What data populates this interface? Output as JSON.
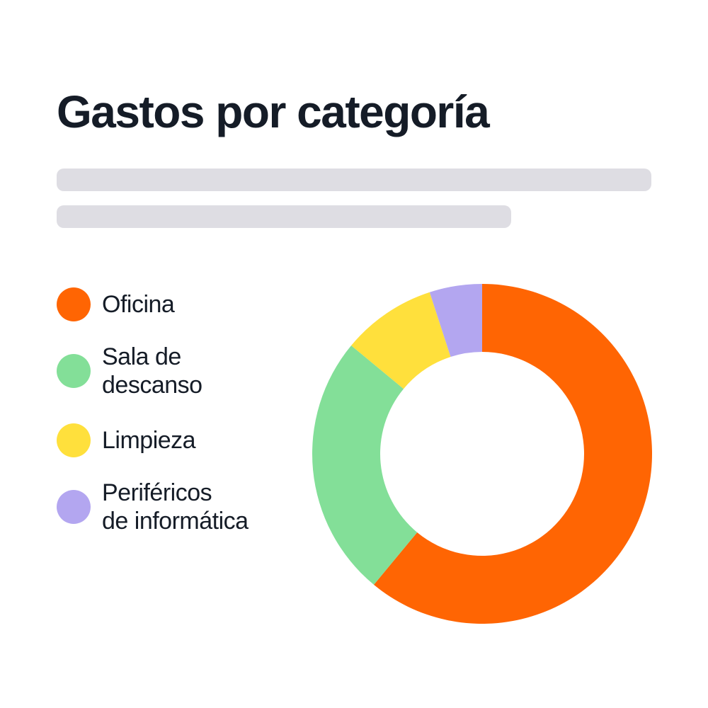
{
  "chart_data": {
    "type": "pie",
    "title": "Gastos por categoría",
    "categories": [
      "Oficina",
      "Sala de descanso",
      "Limpieza",
      "Periféricos de informática"
    ],
    "values": [
      61,
      25,
      9,
      5
    ],
    "colors": [
      "#ff6503",
      "#83df98",
      "#ffe03c",
      "#b3a6f0"
    ],
    "legend": "left"
  },
  "legend": {
    "items": [
      {
        "lines": [
          "Oficina"
        ]
      },
      {
        "lines": [
          "Sala de",
          "descanso"
        ]
      },
      {
        "lines": [
          "Limpieza"
        ]
      },
      {
        "lines": [
          "Periféricos",
          "de informática"
        ]
      }
    ]
  },
  "skeleton_color": "#dedde3"
}
